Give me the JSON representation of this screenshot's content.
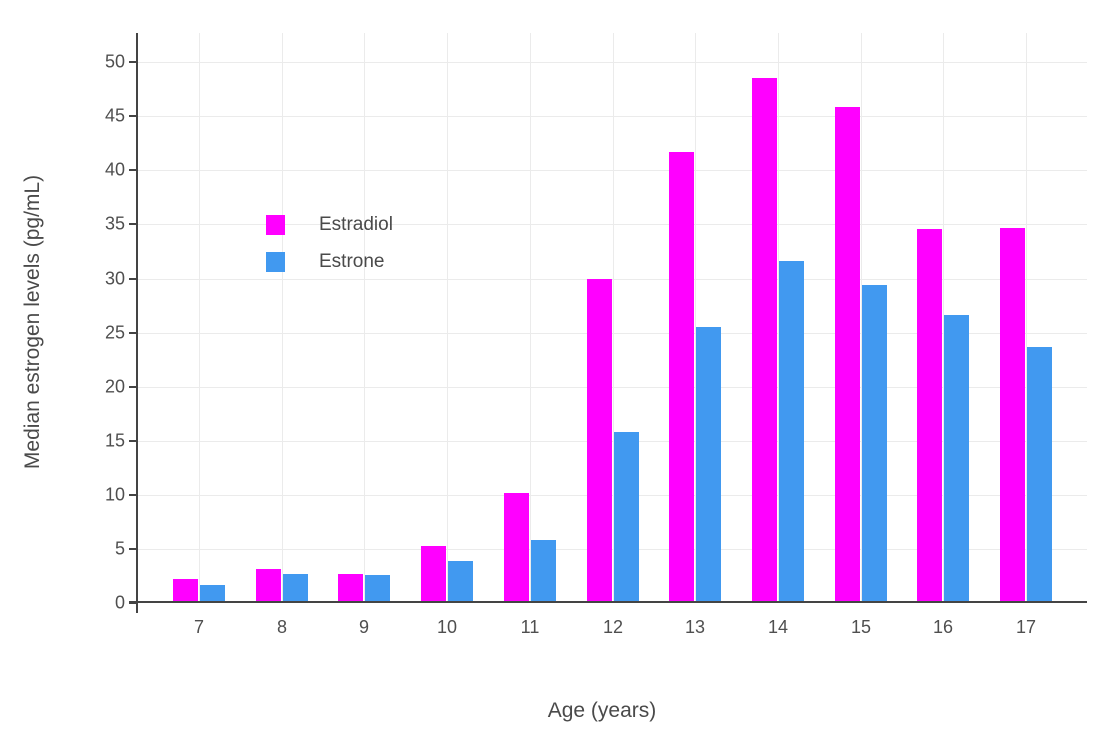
{
  "figure": {
    "background": "#ffffff",
    "axis_line_color": "#444444",
    "gridline_color": "#ebebeb",
    "text_color": "#4a4a4a"
  },
  "chart_data": {
    "type": "bar",
    "title": "",
    "xlabel": "Age (years)",
    "ylabel": "Median estrogen levels (pg/mL)",
    "categories": [
      "7",
      "8",
      "9",
      "10",
      "11",
      "12",
      "13",
      "14",
      "15",
      "16",
      "17"
    ],
    "series": [
      {
        "name": "Estradiol",
        "color": "#ff00ff",
        "values": [
          2.2,
          3.1,
          2.7,
          5.3,
          10.2,
          30.0,
          41.7,
          48.5,
          45.9,
          34.6,
          34.7
        ]
      },
      {
        "name": "Estrone",
        "color": "#4199f0",
        "values": [
          1.7,
          2.7,
          2.6,
          3.9,
          5.8,
          15.8,
          25.5,
          31.6,
          29.4,
          26.6,
          23.7
        ]
      }
    ],
    "ylim": [
      0,
      52.7
    ],
    "yticks": [
      0,
      5,
      10,
      15,
      20,
      25,
      30,
      35,
      40,
      45,
      50
    ],
    "grid": true,
    "legend_position": "inside-top-left"
  }
}
